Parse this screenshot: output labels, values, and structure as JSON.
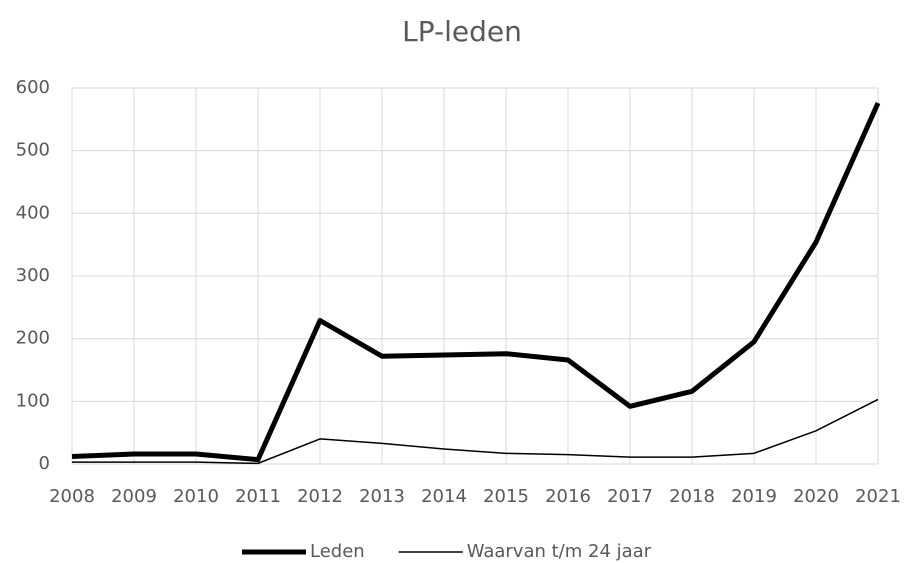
{
  "chart_data": {
    "type": "line",
    "title": "LP-leden",
    "categories": [
      "2008",
      "2009",
      "2010",
      "2011",
      "2012",
      "2013",
      "2014",
      "2015",
      "2016",
      "2017",
      "2018",
      "2019",
      "2020",
      "2021"
    ],
    "series": [
      {
        "name": "Leden",
        "color": "#000000",
        "width": 5,
        "values": [
          12,
          16,
          16,
          7,
          229,
          172,
          174,
          176,
          166,
          92,
          116,
          195,
          354,
          576
        ]
      },
      {
        "name": "Waarvan t/m 24 jaar",
        "color": "#000000",
        "width": 1.5,
        "values": [
          3,
          3,
          3,
          1,
          40,
          33,
          24,
          17,
          15,
          11,
          11,
          17,
          53,
          103
        ]
      }
    ],
    "ylim": [
      0,
      600
    ],
    "yticks": [
      0,
      100,
      200,
      300,
      400,
      500,
      600
    ],
    "grid": true,
    "legend": "bottom"
  }
}
